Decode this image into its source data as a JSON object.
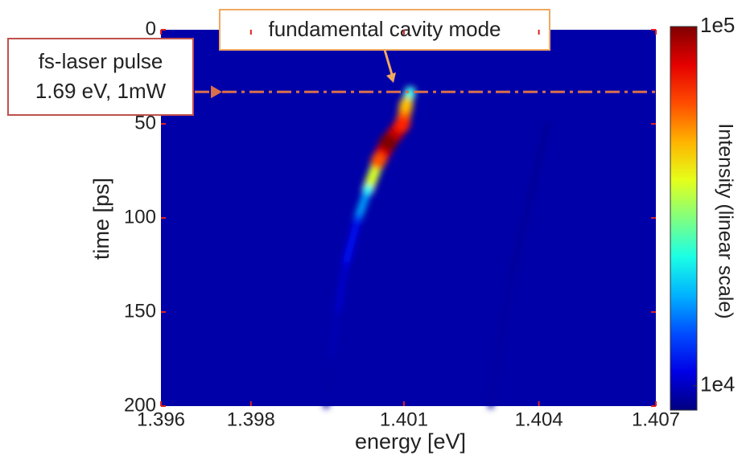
{
  "chart_data": {
    "type": "heatmap",
    "xlabel": "energy [eV]",
    "ylabel": "time [ps]",
    "xlim": [
      1.396,
      1.407
    ],
    "xticks": [
      1.396,
      1.398,
      {
        "value": 1.4014,
        "label": "1.401"
      },
      {
        "value": 1.4044,
        "label": "1.404"
      },
      1.407
    ],
    "ylim": [
      0,
      200
    ],
    "yticks": [
      0,
      50,
      100,
      150,
      200
    ],
    "y_inverted": true,
    "colorbar_label": "Intensity (linear scale)",
    "clim": [
      3900,
      100000
    ],
    "cticks": [
      {
        "value": 100000,
        "label": "1e5"
      },
      {
        "value": 10000,
        "label": "1e4"
      }
    ],
    "colormap": "jet",
    "traces": [
      {
        "x": [
          1.40154,
          1.40145,
          1.40137,
          1.40105,
          1.40083,
          1.4006,
          1.40038,
          1.4001,
          1.39993,
          1.39978,
          1.39967
        ],
        "y": [
          33,
          40,
          50,
          60,
          70,
          85,
          100,
          125,
          150,
          175,
          200
        ],
        "intensity": [
          40000,
          70000,
          85000,
          100000,
          80000,
          40000,
          22000,
          13000,
          10000,
          8000,
          7000
        ]
      },
      {
        "x": [
          1.40459,
          1.4042,
          1.4038,
          1.4035,
          1.40333
        ],
        "y": [
          50,
          90,
          130,
          170,
          200
        ],
        "intensity": [
          5500,
          6000,
          6500,
          7000,
          7000
        ]
      }
    ],
    "hline": {
      "y": 33,
      "color": "#d9704a"
    },
    "annotations": {
      "cavity_mode": "fundamental cavity mode",
      "laser": [
        "fs-laser pulse",
        "1.69 eV, 1mW"
      ]
    }
  }
}
